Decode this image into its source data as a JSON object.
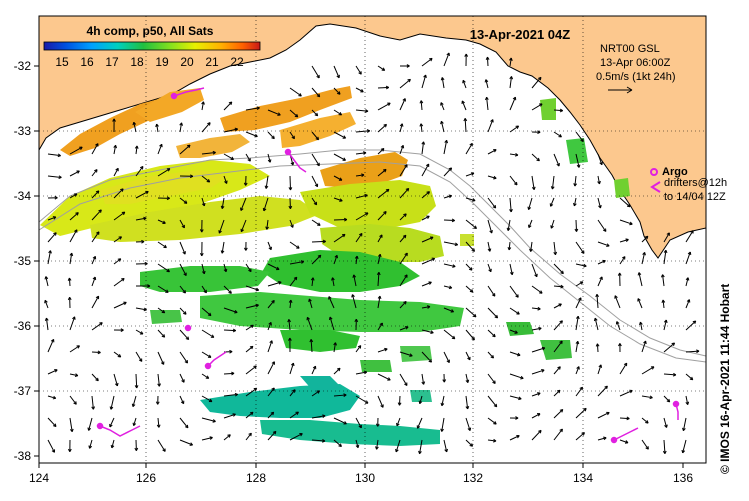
{
  "title": {
    "composite": "4h comp, p50, All Sats",
    "datetime": "13-Apr-2021 04Z"
  },
  "colorbar": {
    "ticks": [
      "15",
      "16",
      "17",
      "18",
      "19",
      "20",
      "21",
      "22"
    ],
    "colors": [
      "#1a1aa8",
      "#0050e0",
      "#00a0ff",
      "#00d0c0",
      "#20c040",
      "#80e020",
      "#e8f000",
      "#ffb000",
      "#ff6000",
      "#c81818"
    ]
  },
  "currents": {
    "model": "NRT00 GSL",
    "time": "13-Apr 06:00Z",
    "scale": "0.5m/s (1kt 24h)"
  },
  "argo": {
    "label": "Argo",
    "drifters_line1": "drifters@12h",
    "drifters_line2": "to 14/04 12Z",
    "color": "#e020e0"
  },
  "axes": {
    "longitudes": [
      "124",
      "126",
      "128",
      "130",
      "132",
      "134",
      "136"
    ],
    "latitudes": [
      "-32",
      "-33",
      "-34",
      "-35",
      "-36",
      "-37",
      "-38"
    ]
  },
  "credit": "© IMOS 16-Apr-2021 11:44 Hobart",
  "colors": {
    "land": "#fcc88e",
    "ocean": "#ffffff",
    "isobath": "#a0a0a0",
    "sst_orange": "#f0a020",
    "sst_yellow": "#d8e818",
    "sst_green": "#30c030",
    "sst_teal": "#10b89a"
  }
}
